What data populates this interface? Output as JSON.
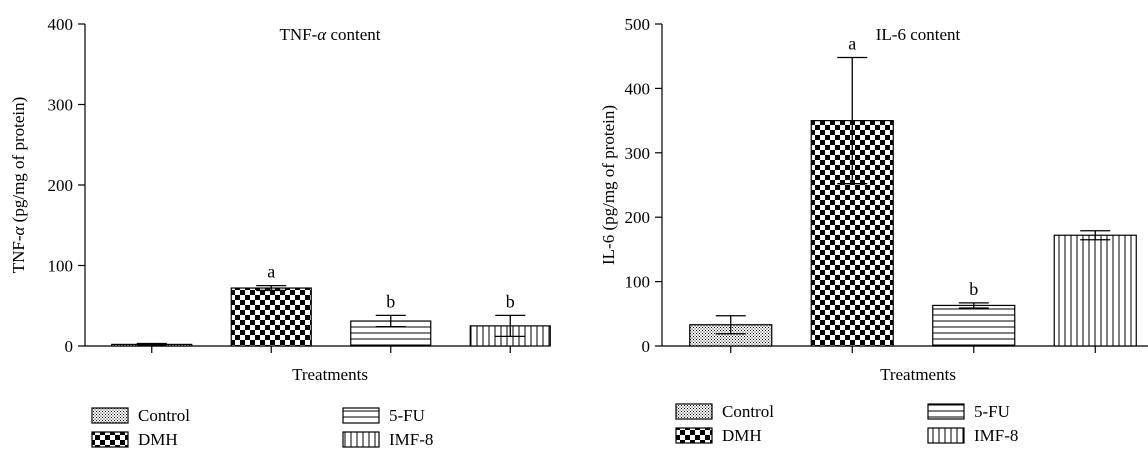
{
  "chart_data": [
    {
      "type": "bar",
      "title": "TNF-α content",
      "title_main": "TNF-",
      "title_sym": "α",
      "title_rest": " content",
      "ylabel": "TNF-α (pg/mg of protein)",
      "ylabel_main": "TNF-",
      "ylabel_sym": "α",
      "ylabel_rest": " (pg/mg of protein)",
      "xlabel": "Treatments",
      "ylim": [
        0,
        400
      ],
      "yticks": [
        "0",
        "100",
        "200",
        "300",
        "400"
      ],
      "yticks_values": [
        0,
        100,
        200,
        300,
        400
      ],
      "categories": [
        "Control",
        "DMH",
        "5-FU",
        "IMF-8"
      ],
      "values": [
        2,
        72,
        31,
        25
      ],
      "errors": [
        1,
        3,
        7,
        13
      ],
      "annotations": [
        "",
        "a",
        "b",
        "b"
      ],
      "legend": [
        "Control",
        "DMH",
        "5-FU",
        "IMF-8"
      ],
      "legend_position": "bottom"
    },
    {
      "type": "bar",
      "title": "IL-6 content",
      "title_main": "IL-6 content",
      "title_sym": "",
      "title_rest": "",
      "ylabel": "IL-6 (pg/mg of protein)",
      "ylabel_main": "IL-6 (pg/mg of protein)",
      "ylabel_sym": "",
      "ylabel_rest": "",
      "xlabel": "Treatments",
      "ylim": [
        0,
        500
      ],
      "yticks": [
        "0",
        "100",
        "200",
        "300",
        "400",
        "500"
      ],
      "yticks_values": [
        0,
        100,
        200,
        300,
        400,
        500
      ],
      "categories": [
        "Control",
        "DMH",
        "5-FU",
        "IMF-8"
      ],
      "values": [
        33,
        350,
        63,
        172
      ],
      "errors": [
        14,
        98,
        4,
        7
      ],
      "annotations": [
        "",
        "a",
        "b",
        ""
      ],
      "legend": [
        "Control",
        "DMH",
        "5-FU",
        "IMF-8"
      ],
      "legend_position": "bottom"
    }
  ]
}
